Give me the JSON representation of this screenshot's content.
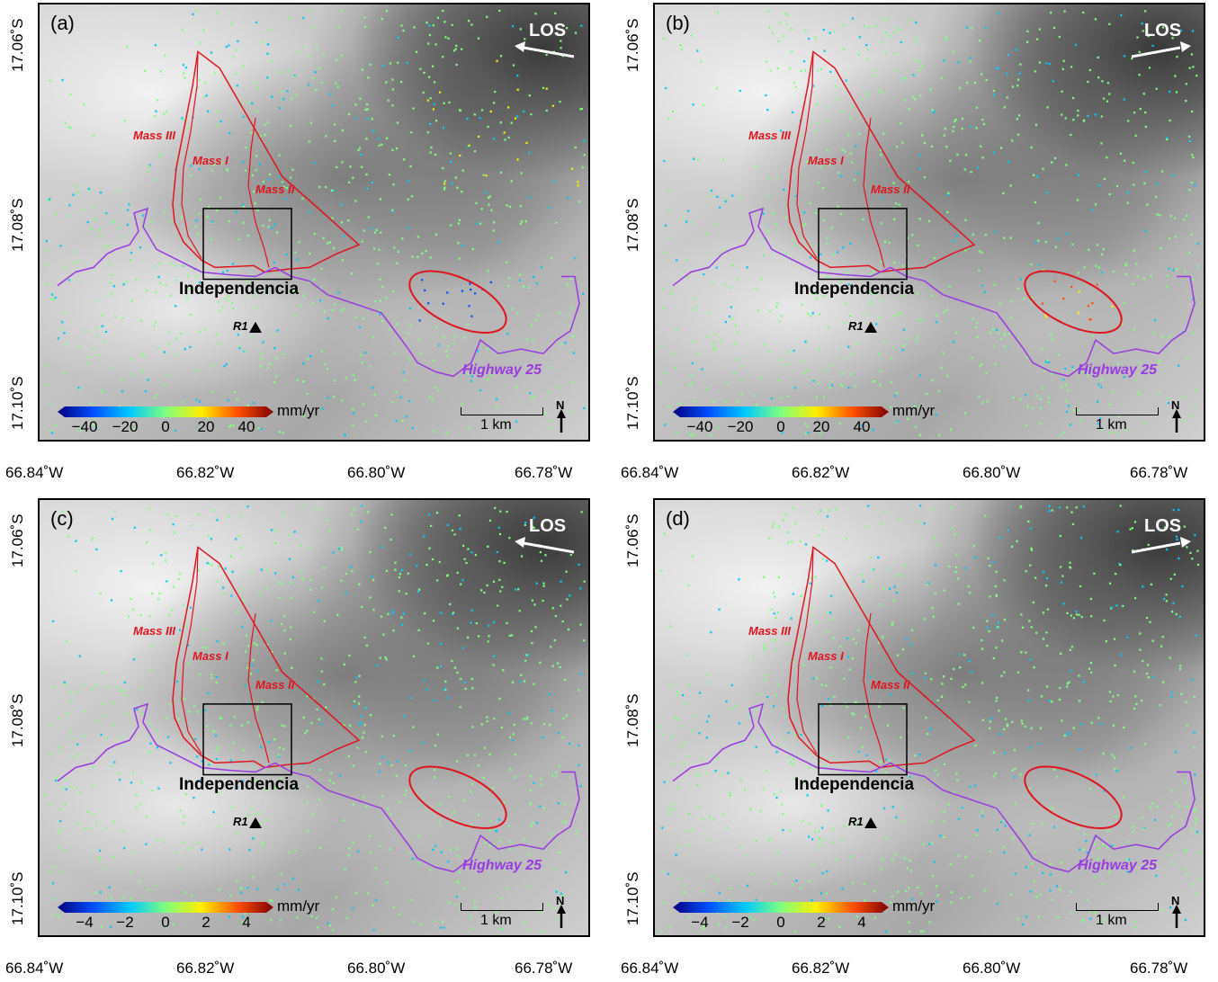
{
  "panels": [
    {
      "label": "(a)",
      "unit": "mm/yr",
      "ticks": [
        "−40",
        "−20",
        "0",
        "20",
        "40"
      ],
      "los_dir": "left"
    },
    {
      "label": "(b)",
      "unit": "mm/yr",
      "ticks": [
        "−40",
        "−20",
        "0",
        "20",
        "40"
      ],
      "los_dir": "right"
    },
    {
      "label": "(c)",
      "unit": "mm/yr",
      "ticks": [
        "−4",
        "−2",
        "0",
        "2",
        "4"
      ],
      "los_dir": "left"
    },
    {
      "label": "(d)",
      "unit": "mm/yr",
      "ticks": [
        "−4",
        "−2",
        "0",
        "2",
        "4"
      ],
      "los_dir": "right"
    }
  ],
  "lat_ticks": [
    "17.06˚S",
    "17.08˚S",
    "17.10˚S"
  ],
  "lon_ticks": [
    "66.84˚W",
    "66.82˚W",
    "66.80˚W",
    "66.78˚W"
  ],
  "labels": {
    "town": "Independencia",
    "mass1": "Mass I",
    "mass2": "Mass II",
    "mass3": "Mass III",
    "highway": "Highway 25",
    "station": "R1",
    "los": "LOS",
    "scale": "1 km",
    "north": "N"
  },
  "colors": {
    "landslide_outline": "#e0141e",
    "highway": "#9a3ae0",
    "colormap": [
      "#00007f",
      "#0050ff",
      "#00c8ff",
      "#7fff7f",
      "#ffee00",
      "#ff5000",
      "#7f0000"
    ]
  }
}
